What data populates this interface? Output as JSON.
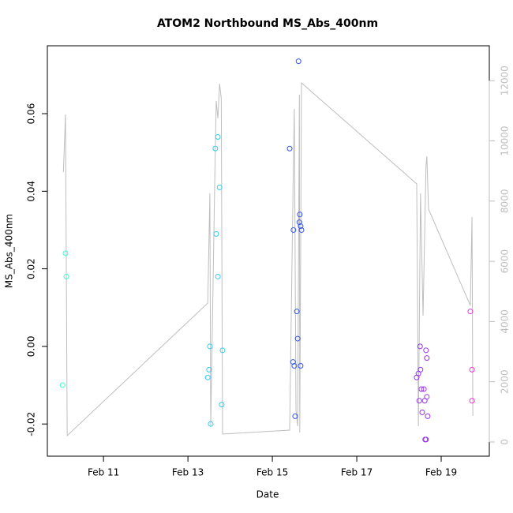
{
  "chart_data": {
    "type": "scatter",
    "title": "ATOM2 Northbound MS_Abs_400nm",
    "x_label": "Date",
    "y_label": "MS_Abs_400nm",
    "xlim": [
      9.67,
      20.14
    ],
    "ylim": [
      -0.0283,
      0.0775
    ],
    "y2lim": [
      -472,
      13159
    ],
    "xticks": [
      {
        "value": 11,
        "label": "Feb 11"
      },
      {
        "value": 13,
        "label": "Feb 13"
      },
      {
        "value": 15,
        "label": "Feb 15"
      },
      {
        "value": 17,
        "label": "Feb 17"
      },
      {
        "value": 19,
        "label": "Feb 19"
      }
    ],
    "yticks": [
      -0.02,
      {
        "value": 0,
        "label": "0.00"
      },
      0.02,
      0.04,
      0.06
    ],
    "y2ticks": [
      0,
      2000,
      4000,
      6000,
      8000,
      10000,
      12000
    ],
    "y2_tick_color": "#bebebe",
    "series": [
      {
        "type": "line",
        "axis": "y2",
        "color": "#bebebe",
        "x": [
          10.05,
          10.1,
          10.14,
          13.47,
          13.52,
          13.54,
          13.64,
          13.67,
          13.71,
          13.75,
          13.79,
          13.82,
          15.41,
          15.49,
          15.52,
          15.56,
          15.6,
          15.64,
          15.65,
          15.69,
          18.42,
          18.46,
          18.51,
          18.57,
          18.64,
          18.66,
          18.7,
          19.69,
          19.73,
          19.75
        ],
        "values": [
          8965,
          10878,
          210,
          4613,
          8257,
          524,
          9043,
          11324,
          10747,
          11900,
          11402,
          262,
          393,
          8388,
          11062,
          1049,
          524,
          11533,
          315,
          11927,
          8572,
          524,
          8257,
          4194,
          9174,
          9489,
          7733,
          4535,
          7471,
          865
        ]
      },
      {
        "color": "#33ffcc",
        "x": [
          10.03,
          10.1,
          10.12
        ],
        "values": [
          -0.01,
          0.024,
          0.018
        ]
      },
      {
        "color": "#33ccee",
        "x": [
          13.47,
          13.5,
          13.52,
          13.54,
          13.65,
          13.67,
          13.71,
          13.71,
          13.75,
          13.8,
          13.82
        ],
        "values": [
          -0.008,
          -0.006,
          0.0,
          -0.02,
          0.051,
          0.029,
          0.018,
          0.054,
          0.041,
          -0.015,
          -0.001
        ]
      },
      {
        "color": "#3355ee",
        "x": [
          15.41,
          15.49,
          15.5,
          15.52,
          15.54,
          15.58,
          15.6,
          15.62,
          15.64,
          15.65,
          15.67,
          15.69,
          15.67
        ],
        "values": [
          0.051,
          -0.004,
          0.03,
          -0.005,
          -0.018,
          0.009,
          0.002,
          0.0735,
          0.032,
          0.034,
          0.031,
          0.03,
          -0.005
        ]
      },
      {
        "color": "#9933ee",
        "x": [
          18.42,
          18.46,
          18.48,
          18.5,
          18.51,
          18.53,
          18.55,
          18.59,
          18.61,
          18.62,
          18.64,
          18.64,
          18.66,
          18.66,
          18.68
        ],
        "values": [
          -0.008,
          -0.007,
          -0.014,
          0.0,
          -0.006,
          -0.011,
          -0.017,
          -0.011,
          -0.014,
          -0.024,
          -0.001,
          -0.024,
          -0.003,
          -0.013,
          -0.018
        ]
      },
      {
        "color": "#ee33dd",
        "x": [
          19.69,
          19.73,
          19.73
        ],
        "values": [
          0.009,
          -0.006,
          -0.014
        ]
      }
    ]
  }
}
